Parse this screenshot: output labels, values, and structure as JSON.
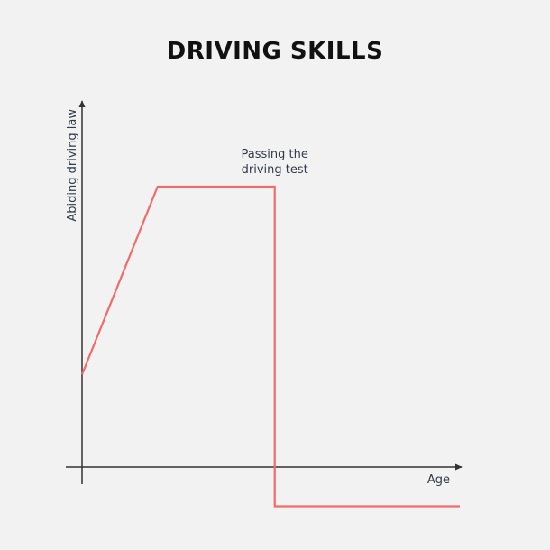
{
  "chart_data": {
    "type": "line",
    "title": "DRIVING SKILLS",
    "xlabel": "Age",
    "ylabel": "Abiding driving law",
    "grid": false,
    "x_ticks_shown": false,
    "y_ticks_shown": false,
    "series": [
      {
        "color": "#f26b6b",
        "points": [
          {
            "x": 0,
            "y": 0.33
          },
          {
            "x": 0.2,
            "y": 1.0
          },
          {
            "x": 0.51,
            "y": 1.0
          },
          {
            "x": 0.51,
            "y": -0.14
          },
          {
            "x": 1.0,
            "y": -0.14
          }
        ]
      }
    ],
    "annotations": [
      {
        "lines": [
          "Passing the",
          "driving test"
        ],
        "x": 0.51,
        "y": 1.0
      }
    ],
    "axis_color": "#333333"
  }
}
